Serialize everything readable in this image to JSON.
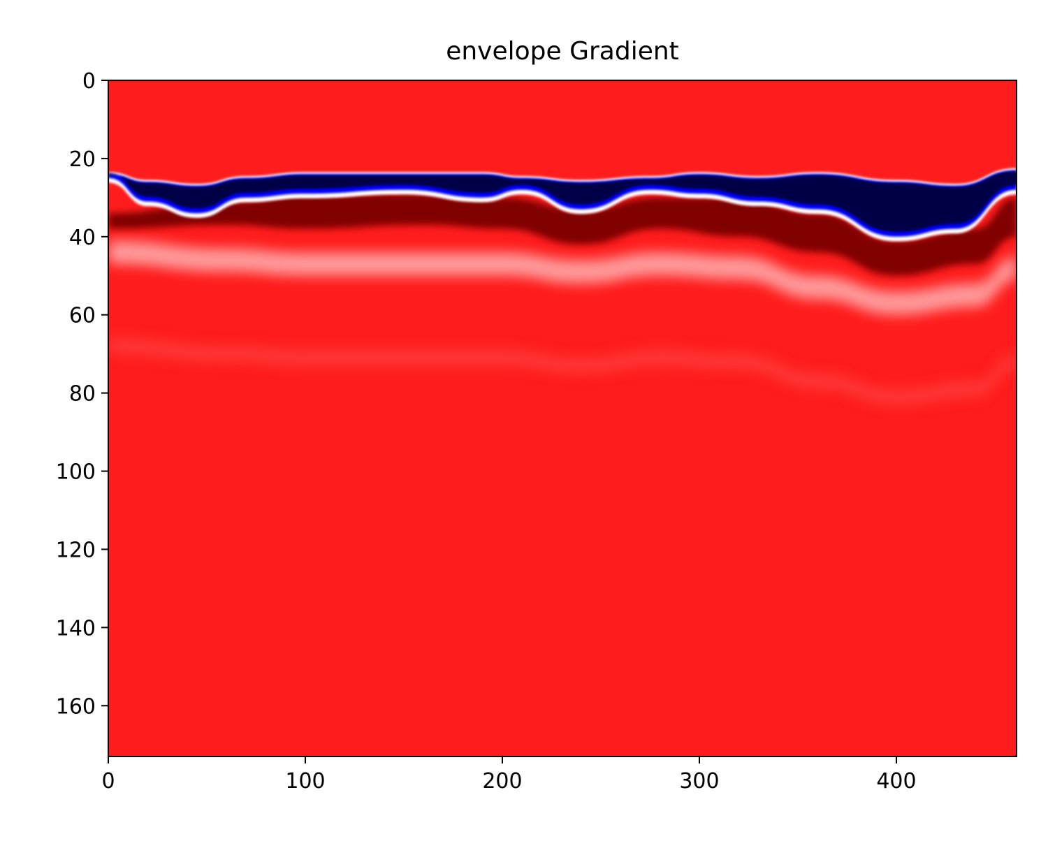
{
  "chart_data": {
    "type": "heatmap",
    "title": "envelope Gradient",
    "xlabel": "",
    "ylabel": "",
    "xlim": [
      0,
      461
    ],
    "ylim": [
      173,
      0
    ],
    "x_ticks": [
      0,
      100,
      200,
      300,
      400
    ],
    "y_ticks": [
      0,
      20,
      40,
      60,
      80,
      100,
      120,
      140,
      160
    ],
    "colormap": "seismic",
    "colors": {
      "background": "#ff1c1c",
      "dark_red": "#800000",
      "dark_blue": "#000046",
      "blue": "#0000ff",
      "white": "#ffffff"
    },
    "features": {
      "blue_band": {
        "x": [
          0,
          20,
          45,
          70,
          100,
          150,
          190,
          210,
          240,
          275,
          300,
          330,
          360,
          400,
          430,
          461
        ],
        "top": [
          24,
          26,
          27,
          25,
          24,
          24,
          24,
          25,
          26,
          25,
          24,
          25,
          24,
          26,
          27,
          23
        ],
        "bottom": [
          25,
          31,
          34,
          30,
          29,
          28,
          30,
          28,
          33,
          28,
          29,
          31,
          33,
          40,
          38,
          28
        ]
      },
      "dark_red_band": {
        "x": [
          0,
          60,
          100,
          160,
          200,
          240,
          280,
          320,
          360,
          400,
          440,
          461
        ],
        "top": [
          34,
          31,
          29,
          29,
          30,
          33,
          30,
          30,
          34,
          41,
          38,
          30
        ],
        "bottom": [
          38,
          37,
          38,
          37,
          38,
          42,
          38,
          40,
          44,
          50,
          47,
          40
        ]
      },
      "light_band": {
        "x": [
          0,
          60,
          100,
          160,
          200,
          240,
          280,
          320,
          360,
          400,
          440,
          461
        ],
        "center": [
          44,
          46,
          47,
          47,
          47,
          49,
          47,
          48,
          53,
          57,
          55,
          48
        ]
      }
    }
  }
}
